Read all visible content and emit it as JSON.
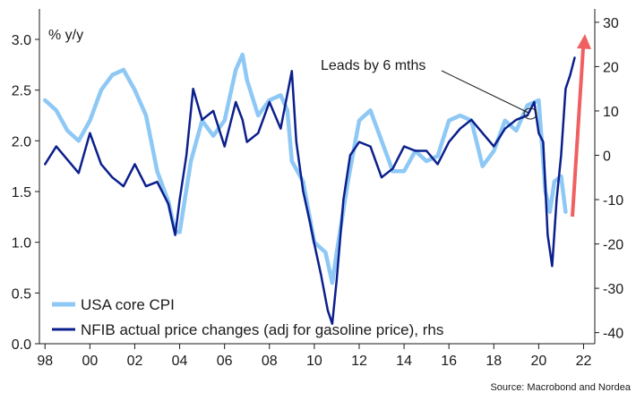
{
  "chart_data": {
    "type": "line",
    "unit_label": "% y/y",
    "source": "Source: Macrobond and Nordea",
    "annotation": "Leads by 6 mths",
    "x_tick_labels": [
      "98",
      "00",
      "02",
      "04",
      "06",
      "08",
      "10",
      "12",
      "14",
      "16",
      "18",
      "20",
      "22"
    ],
    "x_ticks": [
      1998,
      2000,
      2002,
      2004,
      2006,
      2008,
      2010,
      2012,
      2014,
      2016,
      2018,
      2020,
      2022
    ],
    "xlim": [
      1997.75,
      2022.5
    ],
    "y_left": {
      "lim": [
        0,
        3.3
      ],
      "ticks": [
        "0.0",
        "0.5",
        "1.0",
        "1.5",
        "2.0",
        "2.5",
        "3.0"
      ]
    },
    "y_right": {
      "lim": [
        -42.5,
        33
      ],
      "ticks": [
        "-40",
        "-30",
        "-20",
        "-10",
        "0",
        "10",
        "20",
        "30"
      ]
    },
    "grid": false,
    "legend_position": "bottom-left",
    "colors": {
      "cpi": "#8ec8f5",
      "nfib": "#0b1f8c",
      "arrow": "#f06060",
      "axis": "#1a1a1a"
    },
    "series": [
      {
        "name": "USA core CPI",
        "axis": "left",
        "x": [
          1998.0,
          1998.5,
          1999.0,
          1999.5,
          2000.0,
          2000.5,
          2001.0,
          2001.5,
          2002.0,
          2002.5,
          2003.0,
          2003.5,
          2003.8,
          2004.0,
          2004.5,
          2005.0,
          2005.5,
          2006.0,
          2006.5,
          2006.8,
          2007.0,
          2007.5,
          2008.0,
          2008.5,
          2008.8,
          2009.0,
          2009.5,
          2010.0,
          2010.5,
          2010.8,
          2011.0,
          2011.5,
          2012.0,
          2012.5,
          2013.0,
          2013.5,
          2014.0,
          2014.5,
          2015.0,
          2015.5,
          2016.0,
          2016.5,
          2017.0,
          2017.5,
          2018.0,
          2018.5,
          2019.0,
          2019.5,
          2020.0,
          2020.3,
          2020.5,
          2020.7,
          2021.0,
          2021.2
        ],
        "values": [
          2.4,
          2.3,
          2.1,
          2.0,
          2.2,
          2.5,
          2.65,
          2.7,
          2.5,
          2.25,
          1.7,
          1.4,
          1.1,
          1.1,
          1.8,
          2.2,
          2.05,
          2.2,
          2.7,
          2.85,
          2.6,
          2.25,
          2.4,
          2.45,
          2.3,
          1.8,
          1.6,
          1.0,
          0.9,
          0.6,
          0.9,
          1.6,
          2.2,
          2.3,
          2.0,
          1.7,
          1.7,
          1.9,
          1.8,
          1.85,
          2.2,
          2.25,
          2.2,
          1.75,
          1.9,
          2.2,
          2.1,
          2.35,
          2.4,
          1.5,
          1.3,
          1.6,
          1.65,
          1.3
        ]
      },
      {
        "name": "NFIB actual price changes (adj for gasoline price), rhs",
        "axis": "right",
        "x": [
          1998.0,
          1998.5,
          1999.0,
          1999.5,
          2000.0,
          2000.5,
          2001.0,
          2001.5,
          2002.0,
          2002.5,
          2003.0,
          2003.5,
          2003.8,
          2004.0,
          2004.3,
          2004.6,
          2005.0,
          2005.5,
          2006.0,
          2006.5,
          2006.8,
          2007.0,
          2007.5,
          2008.0,
          2008.5,
          2009.0,
          2009.2,
          2009.5,
          2009.8,
          2010.0,
          2010.3,
          2010.6,
          2010.8,
          2011.0,
          2011.3,
          2011.6,
          2012.0,
          2012.5,
          2013.0,
          2013.5,
          2014.0,
          2014.5,
          2015.0,
          2015.5,
          2016.0,
          2016.5,
          2017.0,
          2017.5,
          2018.0,
          2018.5,
          2019.0,
          2019.5,
          2019.8,
          2020.0,
          2020.2,
          2020.4,
          2020.6,
          2020.8,
          2021.0,
          2021.2,
          2021.4,
          2021.6
        ],
        "values": [
          -2,
          2,
          -1,
          -4,
          5,
          -2,
          -5,
          -7,
          -2,
          -7,
          -6,
          -11,
          -18,
          -10,
          0,
          15,
          8,
          10,
          2,
          12,
          8,
          3,
          5,
          12,
          6,
          19,
          3,
          -8,
          -15,
          -20,
          -27,
          -35,
          -38,
          -28,
          -10,
          0,
          3,
          2,
          -5,
          -3,
          2,
          1,
          1,
          -2,
          3,
          6,
          8,
          5,
          2,
          6,
          8,
          9,
          12,
          5,
          3,
          -18,
          -25,
          -10,
          0,
          15,
          18,
          22
        ]
      }
    ]
  }
}
